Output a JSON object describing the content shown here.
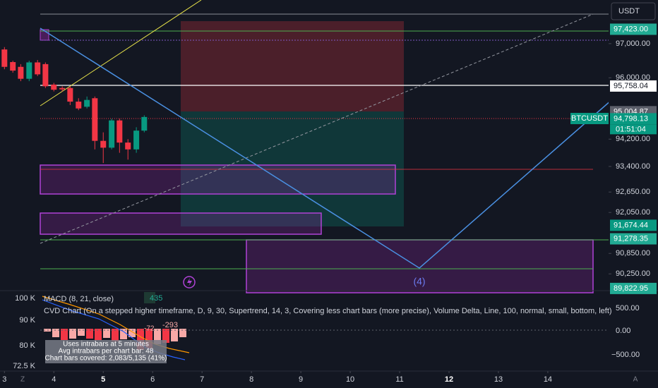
{
  "toolbar": {
    "currency": "USDT"
  },
  "chart": {
    "ylim": [
      89800,
      98280
    ],
    "xlim": [
      2.91,
      15.23
    ],
    "price_ticks": [
      {
        "value": 97000,
        "label": "97,000.00"
      },
      {
        "value": 96000,
        "label": "96,000.00"
      },
      {
        "value": 94200,
        "label": "94,200.00"
      },
      {
        "value": 93400,
        "label": "93,400.00"
      },
      {
        "value": 92650,
        "label": "92,650.00"
      },
      {
        "value": 92050,
        "label": "92,050.00"
      },
      {
        "value": 90850,
        "label": "90,850.00"
      },
      {
        "value": 90250,
        "label": "90,250.00"
      }
    ],
    "price_tags": [
      {
        "value": 97423,
        "label": "97,423.00",
        "color": "#22ab94",
        "text_color": "#ffffff"
      },
      {
        "value": 95758.04,
        "label": "95,758.04",
        "color": "#ffffff",
        "text_color": "#131722"
      },
      {
        "value": 95004.87,
        "label": "95,004.87",
        "color": "#5d606b",
        "text_color": "#ffffff"
      },
      {
        "value": 94798.13,
        "label": "94,798.13",
        "color": "#089981",
        "text_color": "#ffffff"
      },
      {
        "value": 91674.44,
        "label": "91,674.44",
        "color": "#089981",
        "text_color": "#ffffff"
      },
      {
        "value": 91278.35,
        "label": "91,278.35",
        "color": "#22ab94",
        "text_color": "#ffffff"
      },
      {
        "value": 89822.95,
        "label": "89,822.95",
        "color": "#22ab94",
        "text_color": "#ffffff"
      }
    ],
    "symbol_tag": "BTCUSDT",
    "countdown": "01:51:04",
    "time_ticks": [
      3,
      4,
      5,
      6,
      7,
      8,
      9,
      10,
      11,
      12,
      13,
      14
    ],
    "bold_ticks": [
      5,
      12
    ],
    "candles": {
      "x": [
        3,
        3.17,
        3.33,
        3.5,
        3.67,
        3.83,
        4,
        4.17,
        4.33,
        4.5,
        4.67,
        4.83,
        5,
        5.17,
        5.33,
        5.5,
        5.67,
        5.83
      ],
      "open": [
        96830,
        96460,
        96320,
        95970,
        96450,
        96400,
        95800,
        95700,
        95700,
        95300,
        95150,
        95400,
        94150,
        93950,
        94750,
        94100,
        93900,
        94450
      ],
      "high": [
        96900,
        96500,
        96400,
        96500,
        96520,
        96450,
        95850,
        95750,
        95750,
        95400,
        95450,
        95450,
        94400,
        94800,
        94800,
        94200,
        94550,
        94900
      ],
      "low": [
        96250,
        96150,
        95900,
        95900,
        96050,
        95700,
        95600,
        95600,
        95200,
        95050,
        95100,
        93900,
        93500,
        93900,
        93800,
        93600,
        93800,
        94400
      ],
      "close": [
        96320,
        96210,
        95970,
        96450,
        96100,
        95750,
        95650,
        95660,
        95300,
        95100,
        95350,
        94150,
        93950,
        94750,
        94100,
        93900,
        94450,
        94850
      ],
      "up_color": "#089981",
      "down_color": "#f23645"
    },
    "wave_label": "(4)"
  },
  "indicators": {
    "macd_title": "MACD (8, 21, close)",
    "macd_value": "435",
    "cvd_title": "CVD Chart (On a stepped higher timeframe, D, 9, 30, Supertrend, 14, 3, Covering less chart bars (more precise), Volume Delta, Line, 100, normal, small, bottom, left)",
    "cvd_value": "-293",
    "cvd_value2": "-72",
    "tooltip": [
      "Uses intrabars at 5 minutes",
      "Avg intrabars per chart bar: 48",
      "Chart bars covered: 2,083/5,135 (41%)"
    ],
    "left_axis": [
      "100 K",
      "90 K",
      "80 K",
      "72.5 K"
    ],
    "right_axis": [
      "500.00",
      "0.00",
      "−500.00"
    ]
  },
  "footer": {
    "left": "Z",
    "right": "A"
  }
}
